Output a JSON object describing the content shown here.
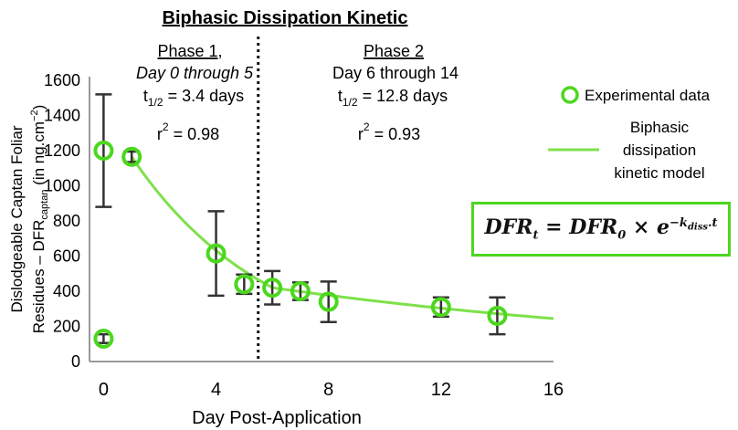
{
  "chart_data": {
    "type": "scatter",
    "title": "Biphasic Dissipation Kinetic",
    "xlabel": "Day Post-Application",
    "ylabel_line1": "Dislodgeable Captan Foliar",
    "ylabel_line2_pre": "Residues – DFR",
    "ylabel_line2_sub": "captan",
    "ylabel_line2_post": "  (in ng.cm",
    "ylabel_line2_sup": "−2",
    "ylabel_line2_end": ")",
    "xlim": [
      -0.5,
      16
    ],
    "ylim": [
      0,
      1600
    ],
    "xticks": [
      0,
      4,
      8,
      12,
      16
    ],
    "yticks": [
      0,
      200,
      400,
      600,
      800,
      1000,
      1200,
      1400,
      1600
    ],
    "series": [
      {
        "name": "Experimental data",
        "color": "#4cd71f",
        "points": [
          {
            "x": 0,
            "y": 130,
            "err": 25
          },
          {
            "x": 0,
            "y": 1200,
            "err": 320
          },
          {
            "x": 1,
            "y": 1165,
            "err": 30
          },
          {
            "x": 4,
            "y": 615,
            "err": 240
          },
          {
            "x": 5,
            "y": 440,
            "err": 55
          },
          {
            "x": 6,
            "y": 420,
            "err": 95
          },
          {
            "x": 7,
            "y": 400,
            "err": 50
          },
          {
            "x": 8,
            "y": 340,
            "err": 115
          },
          {
            "x": 12,
            "y": 310,
            "err": 55
          },
          {
            "x": 14,
            "y": 260,
            "err": 105
          }
        ]
      },
      {
        "name": "Biphasic dissipation kinetic model",
        "color": "#4cd71f",
        "phase1": {
          "t0": 1,
          "t1": 6,
          "y0": 1165,
          "half_life": 3.4
        },
        "phase2": {
          "t0": 6,
          "t1": 16,
          "y0": 420,
          "half_life": 12.8
        }
      }
    ],
    "phase_divider_x": 5.5,
    "phases": [
      {
        "label": "Phase 1,",
        "range": "Day 0 through 5",
        "half_life_pre": "t",
        "half_life_sub": "1/2",
        "half_life_post": " = 3.4 days",
        "r2_pre": "r",
        "r2_sup": "2",
        "r2_post": " = 0.98"
      },
      {
        "label": "Phase 2",
        "range": "Day 6 through 14",
        "half_life_pre": "t",
        "half_life_sub": "1/2",
        "half_life_post": " = 12.8 days",
        "r2_pre": "r",
        "r2_sup": "2",
        "r2_post": " = 0.93"
      }
    ],
    "legend": {
      "placement": "right",
      "markers_label": "Experimental data",
      "line_label_lines": [
        "Biphasic",
        "dissipation",
        "kinetic model"
      ]
    },
    "equation": {
      "lhs": "DFR",
      "lhs_sub": "t",
      "eq": " = ",
      "rhs": "DFR",
      "rhs_sub": "0",
      "times": " × ",
      "base": "e",
      "exp_sign": "−k",
      "exp_sub": "diss",
      "exp_tail": ".t"
    }
  }
}
